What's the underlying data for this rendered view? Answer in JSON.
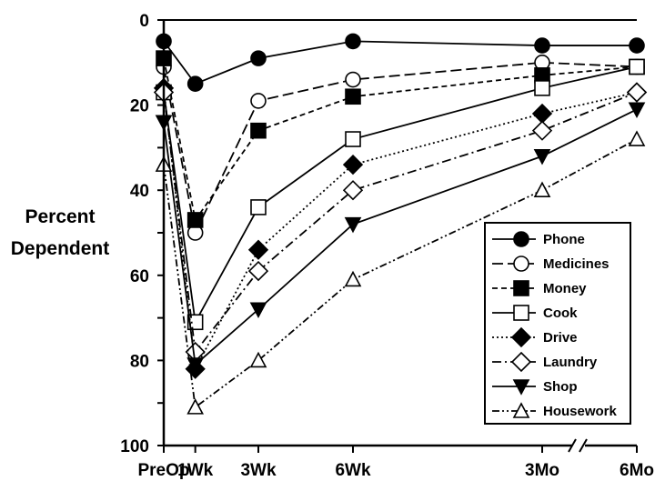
{
  "chart_data": {
    "type": "line",
    "title": "",
    "ylabel_line1": "Percent",
    "ylabel_line2": "Dependent",
    "xlabel": "",
    "x": [
      "PreOp",
      "1Wk",
      "3Wk",
      "6Wk",
      "3Mo",
      "6Mo"
    ],
    "x_position_units": [
      0,
      1,
      3,
      6,
      12,
      15
    ],
    "ylim": [
      0,
      100
    ],
    "y_inverted": true,
    "y_ticks": [
      0,
      20,
      40,
      60,
      80,
      100
    ],
    "axis_break": "between 3Mo and 6Mo",
    "legend_position": "center-right",
    "series": [
      {
        "name": "Phone",
        "marker": "filled-circle",
        "dash": "solid",
        "values": [
          5,
          15,
          9,
          5,
          6,
          6
        ]
      },
      {
        "name": "Medicines",
        "marker": "open-circle",
        "dash": "long-dash",
        "values": [
          11,
          50,
          19,
          14,
          10,
          11
        ]
      },
      {
        "name": "Money",
        "marker": "filled-square",
        "dash": "short-dash",
        "values": [
          9,
          47,
          26,
          18,
          13,
          11
        ]
      },
      {
        "name": "Cook",
        "marker": "open-square",
        "dash": "solid",
        "values": [
          17,
          71,
          44,
          28,
          16,
          11
        ]
      },
      {
        "name": "Drive",
        "marker": "filled-diamond",
        "dash": "dotted",
        "values": [
          16,
          82,
          54,
          34,
          22,
          17
        ]
      },
      {
        "name": "Laundry",
        "marker": "open-diamond",
        "dash": "dash-dot",
        "values": [
          17,
          78,
          59,
          40,
          26,
          17
        ]
      },
      {
        "name": "Shop",
        "marker": "filled-triangle-down",
        "dash": "solid",
        "values": [
          24,
          81,
          68,
          48,
          32,
          21
        ]
      },
      {
        "name": "Housework",
        "marker": "open-triangle-up",
        "dash": "dash-dot-dot",
        "values": [
          34,
          91,
          80,
          61,
          40,
          28
        ]
      }
    ]
  }
}
